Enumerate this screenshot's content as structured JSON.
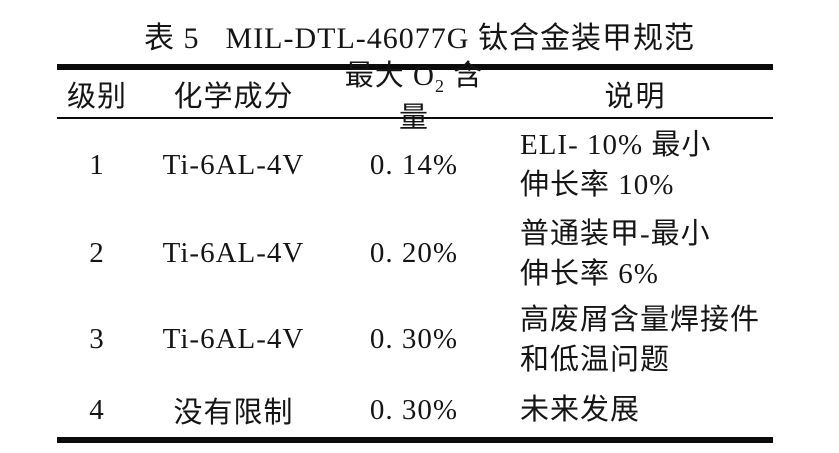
{
  "page": {
    "background": "#ffffff",
    "text_color": "#151515",
    "rule_color": "#0b0b0b"
  },
  "caption": {
    "part1": "表 5",
    "part2": "MIL-DTL-46077G 钛合金装甲规范"
  },
  "table": {
    "headers": {
      "grade": "级别",
      "composition": "化学成分",
      "max_o2_prefix": "最大 O",
      "max_o2_sub": "2",
      "max_o2_suffix": " 含量",
      "description": "说明"
    },
    "rows": [
      {
        "grade": "1",
        "composition": "Ti-6AL-4V",
        "max_o2": "0. 14%",
        "desc_line1": "ELI- 10% 最小",
        "desc_line2": "伸长率 10%"
      },
      {
        "grade": "2",
        "composition": "Ti-6AL-4V",
        "max_o2": "0. 20%",
        "desc_line1": "普通装甲-最小",
        "desc_line2": "伸长率 6%"
      },
      {
        "grade": "3",
        "composition": "Ti-6AL-4V",
        "max_o2": "0. 30%",
        "desc_line1": "高废屑含量焊接件",
        "desc_line2": "和低温问题"
      },
      {
        "grade": "4",
        "composition": "没有限制",
        "max_o2": "0. 30%",
        "desc_line1": "未来发展",
        "desc_line2": ""
      }
    ]
  }
}
